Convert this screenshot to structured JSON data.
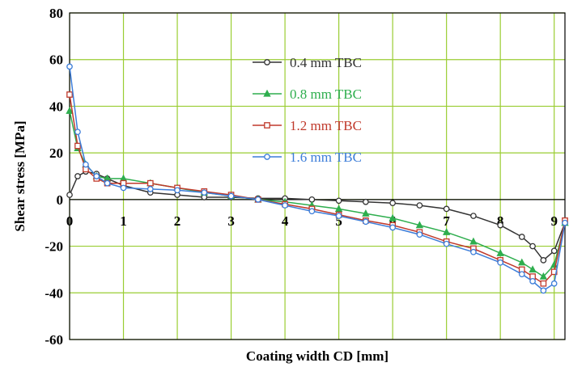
{
  "chart_data": {
    "type": "line",
    "title": "",
    "xlabel": "Coating width CD [mm]",
    "ylabel": "Shear stress [MPa]",
    "xlim": [
      0,
      9.2
    ],
    "ylim": [
      -60,
      80
    ],
    "xticks": [
      "0",
      "1",
      "2",
      "3",
      "4",
      "5",
      "6",
      "7",
      "8",
      "9"
    ],
    "yticks": [
      "-60",
      "-40",
      "-20",
      "0",
      "20",
      "40",
      "60",
      "80"
    ],
    "grid": true,
    "grid_color": "#9acd32",
    "legend_position": "top-center",
    "series": [
      {
        "name": "0.4 mm TBC",
        "color": "#333333",
        "marker": "circle",
        "x": [
          0,
          0.15,
          0.3,
          0.5,
          0.7,
          1.0,
          1.5,
          2.0,
          2.5,
          3.0,
          3.5,
          4.0,
          4.5,
          5.0,
          5.5,
          6.0,
          6.5,
          7.0,
          7.5,
          8.0,
          8.4,
          8.6,
          8.8,
          9.0,
          9.2
        ],
        "y": [
          2,
          10,
          12,
          11,
          9,
          6,
          3,
          2,
          1,
          1,
          0.5,
          0.5,
          0,
          -0.5,
          -1,
          -1.5,
          -2.5,
          -4,
          -7,
          -11,
          -16,
          -20,
          -26,
          -22,
          -10
        ]
      },
      {
        "name": "0.8 mm TBC",
        "color": "#2eae4e",
        "marker": "triangle",
        "x": [
          0,
          0.15,
          0.3,
          0.5,
          0.7,
          1.0,
          1.5,
          2.0,
          2.5,
          3.0,
          3.5,
          4.0,
          4.5,
          5.0,
          5.5,
          6.0,
          6.5,
          7.0,
          7.5,
          8.0,
          8.4,
          8.6,
          8.8,
          9.0,
          9.2
        ],
        "y": [
          38,
          22,
          15,
          10,
          9,
          9,
          7,
          5,
          3,
          1.5,
          0,
          -1,
          -2.5,
          -4,
          -6,
          -8,
          -11,
          -14,
          -18,
          -23,
          -27,
          -30,
          -33,
          -28,
          -10
        ]
      },
      {
        "name": "1.2 mm TBC",
        "color": "#c0392b",
        "marker": "square",
        "x": [
          0,
          0.15,
          0.3,
          0.5,
          0.7,
          1.0,
          1.5,
          2.0,
          2.5,
          3.0,
          3.5,
          4.0,
          4.5,
          5.0,
          5.5,
          6.0,
          6.5,
          7.0,
          7.5,
          8.0,
          8.4,
          8.6,
          8.8,
          9.0,
          9.2
        ],
        "y": [
          45,
          23,
          13,
          9,
          7,
          7,
          7,
          5,
          3.5,
          2,
          0,
          -2,
          -4,
          -6.5,
          -9,
          -11,
          -14,
          -18,
          -21,
          -26,
          -30,
          -33,
          -36,
          -31,
          -9
        ]
      },
      {
        "name": "1.6 mm TBC",
        "color": "#3c7dd9",
        "marker": "circle",
        "x": [
          0,
          0.15,
          0.3,
          0.5,
          0.7,
          1.0,
          1.5,
          2.0,
          2.5,
          3.0,
          3.5,
          4.0,
          4.5,
          5.0,
          5.5,
          6.0,
          6.5,
          7.0,
          7.5,
          8.0,
          8.4,
          8.6,
          8.8,
          9.0,
          9.2
        ],
        "y": [
          57,
          29,
          15,
          10,
          7,
          5,
          4.5,
          4,
          3,
          1.5,
          0,
          -2.5,
          -5,
          -7,
          -9.5,
          -12,
          -15,
          -19,
          -22.5,
          -27,
          -32,
          -35,
          -39,
          -36,
          -10
        ]
      }
    ]
  }
}
